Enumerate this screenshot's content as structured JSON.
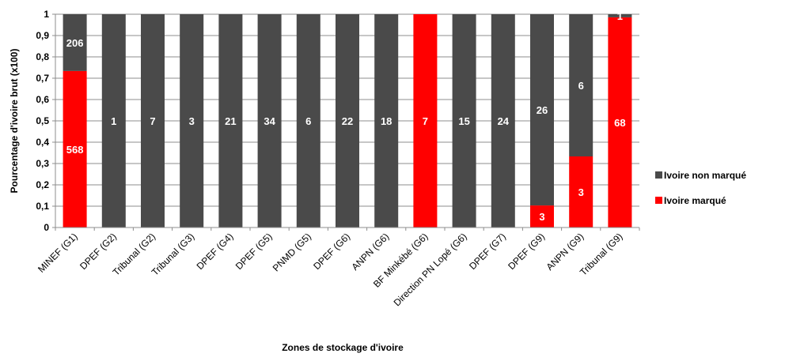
{
  "chart_data": {
    "type": "bar",
    "stacked": true,
    "normalized": true,
    "categories": [
      "MINEF (G1)",
      "DPEF (G2)",
      "Tribunal (G2)",
      "Tribunal (G3)",
      "DPEF (G4)",
      "DPEF (G5)",
      "PNMD (G5)",
      "DPEF (G6)",
      "ANPN (G6)",
      "BF Minkébé (G6)",
      "Direction PN Lopé (G6)",
      "DPEF (G7)",
      "DPEF (G9)",
      "ANPN (G9)",
      "Tribunal (G9)"
    ],
    "series": [
      {
        "name": "Ivoire marqué",
        "color": "#ff0000",
        "values": [
          568,
          0,
          0,
          0,
          0,
          0,
          0,
          0,
          0,
          7,
          0,
          0,
          3,
          3,
          68
        ],
        "labels": [
          "568",
          "",
          "",
          "",
          "",
          "",
          "",
          "",
          "",
          "7",
          "",
          "",
          "3",
          "3",
          "68"
        ]
      },
      {
        "name": "Ivoire non marqué",
        "color": "#4a4a4a",
        "values": [
          206,
          1,
          7,
          3,
          21,
          34,
          6,
          22,
          18,
          0,
          15,
          24,
          26,
          6,
          1
        ],
        "labels": [
          "206",
          "1",
          "7",
          "3",
          "21",
          "34",
          "6",
          "22",
          "18",
          "",
          "15",
          "24",
          "26",
          "6",
          "1"
        ]
      }
    ],
    "xlabel": "Zones de stockage d'ivoire",
    "ylabel": "Pourcentage d'ivoire brut (x100)",
    "ylim": [
      0,
      1
    ],
    "yticks": [
      "0",
      "0,1",
      "0,2",
      "0,3",
      "0,4",
      "0,5",
      "0,6",
      "0,7",
      "0,8",
      "0,9",
      "1"
    ],
    "grid": true,
    "legend_position": "right",
    "legend": [
      "Ivoire non marqué",
      "Ivoire marqué"
    ]
  }
}
